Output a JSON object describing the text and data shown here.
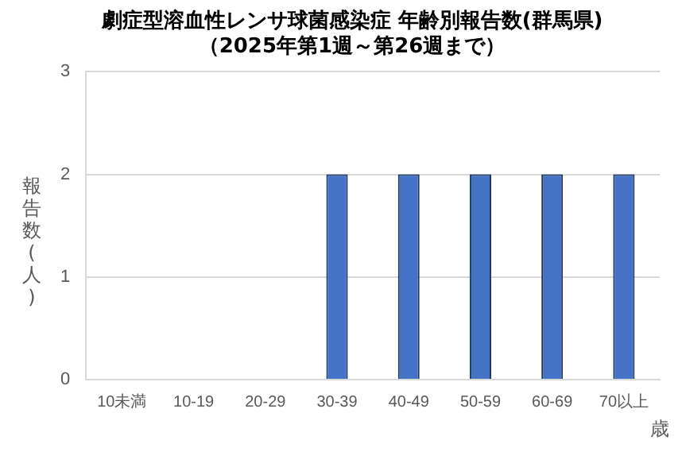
{
  "chart_data": {
    "type": "bar",
    "title": "劇症型溶血性レンサ球菌感染症 年齢別報告数(群馬県)",
    "subtitle": "（2025年第1週～第26週まで）",
    "ylabel": "報告数(人)",
    "xlabel": "歳",
    "categories": [
      "10未満",
      "10-19",
      "20-29",
      "30-39",
      "40-49",
      "50-59",
      "60-69",
      "70以上"
    ],
    "values": [
      0,
      0,
      0,
      2,
      2,
      2,
      2,
      2
    ],
    "color": "#4472c4",
    "ylim": [
      0,
      3
    ],
    "yticks": [
      0,
      1,
      2,
      3
    ],
    "grid": "y",
    "legend": false
  }
}
